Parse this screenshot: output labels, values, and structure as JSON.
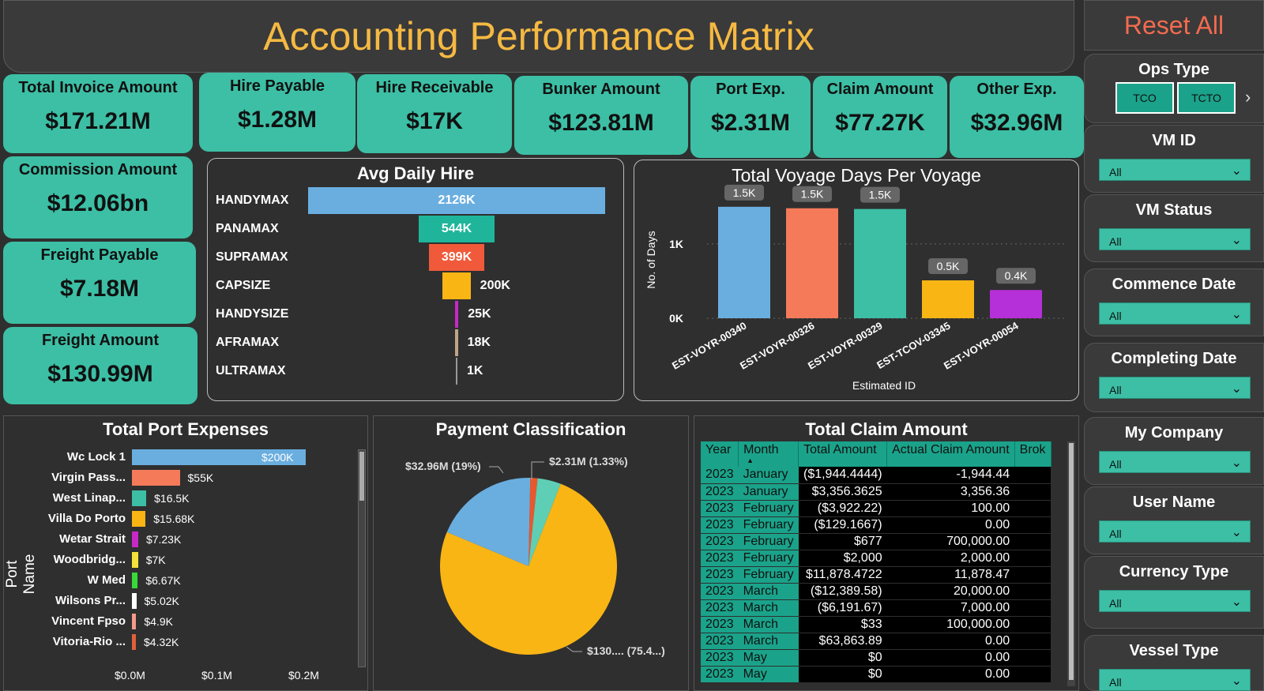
{
  "header": {
    "title": "Accounting Performance Matrix",
    "reset": "Reset All"
  },
  "kpis": {
    "total_invoice": {
      "label": "Total Invoice Amount",
      "value": "$171.21M"
    },
    "hire_payable": {
      "label": "Hire Payable",
      "value": "$1.28M"
    },
    "hire_receivable": {
      "label": "Hire Receivable",
      "value": "$17K"
    },
    "bunker": {
      "label": "Bunker Amount",
      "value": "$123.81M"
    },
    "port_exp": {
      "label": "Port Exp.",
      "value": "$2.31M"
    },
    "claim": {
      "label": "Claim Amount",
      "value": "$77.27K"
    },
    "other_exp": {
      "label": "Other Exp.",
      "value": "$32.96M"
    },
    "commission": {
      "label": "Commission Amount",
      "value": "$12.06bn"
    },
    "freight_payable": {
      "label": "Freight Payable",
      "value": "$7.18M"
    },
    "freight_amount": {
      "label": "Freight Amount",
      "value": "$130.99M"
    }
  },
  "chart_data": [
    {
      "type": "bar",
      "orientation": "horizontal-funnel",
      "title": "Avg Daily Hire",
      "categories": [
        "HANDYMAX",
        "PANAMAX",
        "SUPRAMAX",
        "CAPSIZE",
        "HANDYSIZE",
        "AFRAMAX",
        "ULTRAMAX"
      ],
      "values": [
        2126,
        544,
        399,
        200,
        25,
        18,
        1
      ],
      "labels": [
        "2126K",
        "544K",
        "399K",
        "200K",
        "25K",
        "18K",
        "1K"
      ],
      "colors": [
        "#6aaee0",
        "#1fb59b",
        "#f05a3a",
        "#f9b514",
        "#c728c7",
        "#c0a488",
        "#999999"
      ]
    },
    {
      "type": "bar",
      "title": "Total Voyage Days Per Voyage",
      "xlabel": "Estimated ID",
      "ylabel": "No. of Days",
      "categories": [
        "EST-VOYR-00340",
        "EST-VOYR-00326",
        "EST-VOYR-00329",
        "EST-TCOV-03345",
        "EST-VOYR-00054"
      ],
      "values": [
        1500,
        1480,
        1470,
        510,
        380
      ],
      "labels": [
        "1.5K",
        "1.5K",
        "1.5K",
        "0.5K",
        "0.4K"
      ],
      "yticks": [
        "0K",
        "1K"
      ],
      "ylim": [
        0,
        1700
      ],
      "colors": [
        "#6aaee0",
        "#f47a5a",
        "#3cbfa5",
        "#f9b514",
        "#b530d8"
      ]
    },
    {
      "type": "bar",
      "orientation": "horizontal",
      "title": "Total Port Expenses",
      "ylabel": "Port Name",
      "categories": [
        "Wc Lock 1",
        "Virgin Pass...",
        "West Linap...",
        "Villa Do Porto",
        "Wetar Strait",
        "Woodbridg...",
        "W Med",
        "Wilsons Pr...",
        "Vincent Fpso",
        "Vitoria-Rio ..."
      ],
      "values": [
        200000,
        55000,
        16500,
        15680,
        7230,
        7000,
        6670,
        5020,
        4900,
        4320
      ],
      "labels": [
        "$200K",
        "$55K",
        "$16.5K",
        "$15.68K",
        "$7.23K",
        "$7K",
        "$6.67K",
        "$5.02K",
        "$4.9K",
        "$4.32K"
      ],
      "xticks": [
        "$0.0M",
        "$0.1M",
        "$0.2M"
      ],
      "xlim": [
        0,
        200000
      ],
      "colors": [
        "#6aaee0",
        "#f47a5a",
        "#3cbfa5",
        "#f9b514",
        "#c728c7",
        "#f4e23a",
        "#38d838",
        "#ffffff",
        "#f49a8a",
        "#e0603a"
      ]
    },
    {
      "type": "pie",
      "title": "Payment Classification",
      "slices": [
        {
          "value": 75.4,
          "label": "$130.... (75.4...)",
          "color": "#f9b514"
        },
        {
          "value": 19.0,
          "label": "$32.96M (19%)",
          "color": "#6aaee0"
        },
        {
          "value": 1.33,
          "label": "$2.31M (1.33%)",
          "color": "#e8582e"
        },
        {
          "value": 4.27,
          "label": "",
          "color": "#5ecfb5"
        }
      ]
    }
  ],
  "claim_table": {
    "title": "Total Claim Amount",
    "columns": [
      "Year",
      "Month",
      "Total Amount",
      "Actual Claim Amount",
      "Brok"
    ],
    "rows": [
      [
        "2023",
        "January",
        "($1,944.4444)",
        "-1,944.44"
      ],
      [
        "2023",
        "January",
        "$3,356.3625",
        "3,356.36"
      ],
      [
        "2023",
        "February",
        "($3,922.22)",
        "100.00"
      ],
      [
        "2023",
        "February",
        "($129.1667)",
        "0.00"
      ],
      [
        "2023",
        "February",
        "$677",
        "700,000.00"
      ],
      [
        "2023",
        "February",
        "$2,000",
        "2,000.00"
      ],
      [
        "2023",
        "February",
        "$11,878.4722",
        "11,878.47"
      ],
      [
        "2023",
        "March",
        "($12,389.58)",
        "20,000.00"
      ],
      [
        "2023",
        "March",
        "($6,191.67)",
        "7,000.00"
      ],
      [
        "2023",
        "March",
        "$33",
        "100,000.00"
      ],
      [
        "2023",
        "March",
        "$63,863.89",
        "0.00"
      ],
      [
        "2023",
        "May",
        "$0",
        "0.00"
      ],
      [
        "2023",
        "May",
        "$0",
        "0.00"
      ]
    ]
  },
  "slicers": {
    "ops_type": {
      "title": "Ops Type",
      "options": [
        "TCO",
        "TCTO"
      ]
    },
    "vm_id": {
      "title": "VM ID",
      "value": "All"
    },
    "vm_status": {
      "title": "VM Status",
      "value": "All"
    },
    "commence_date": {
      "title": "Commence Date",
      "value": "All"
    },
    "completing_date": {
      "title": "Completing Date",
      "value": "All"
    },
    "my_company": {
      "title": "My Company",
      "value": "All"
    },
    "user_name": {
      "title": "User Name",
      "value": "All"
    },
    "currency_type": {
      "title": "Currency Type",
      "value": "All"
    },
    "vessel_type": {
      "title": "Vessel Type",
      "value": "All"
    }
  }
}
